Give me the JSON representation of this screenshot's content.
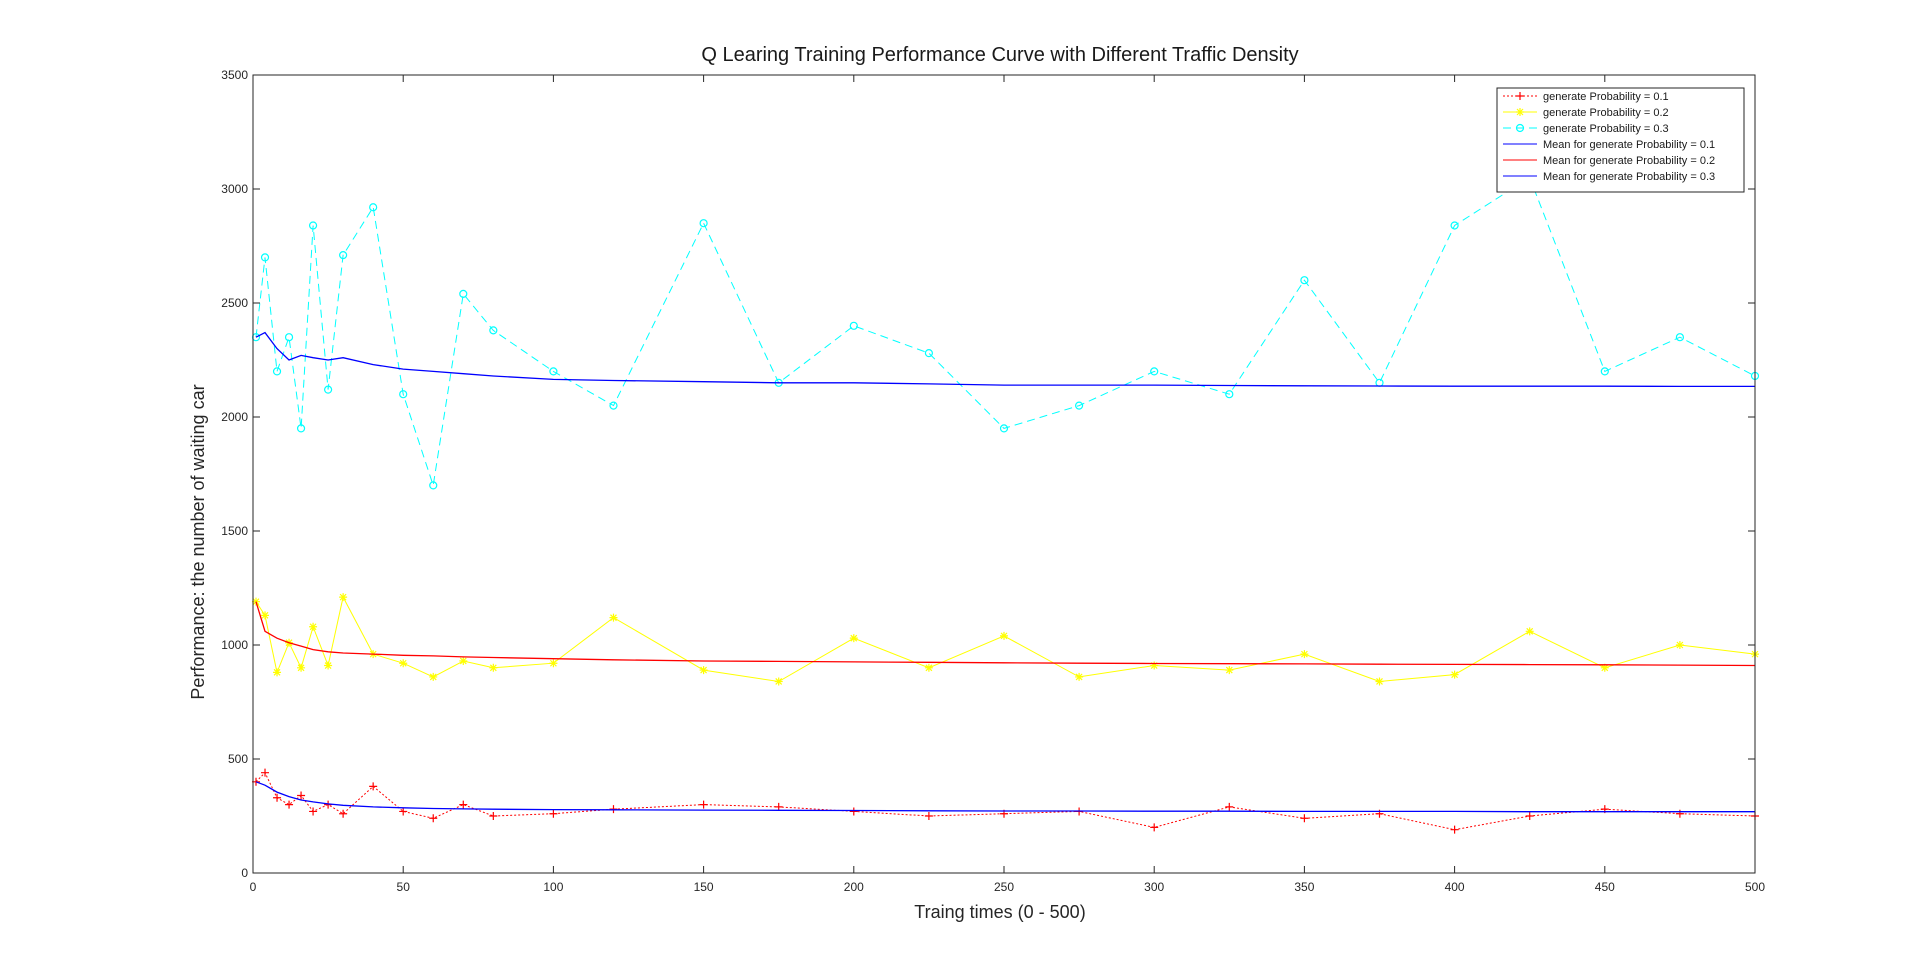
{
  "chart_data": {
    "type": "line",
    "title": "Q Learing Training Performance Curve with Different Traffic Density",
    "xlabel": "Traing times (0 - 500)",
    "ylabel": "Performance: the number of waiting car",
    "xlim": [
      0,
      500
    ],
    "ylim": [
      0,
      3500
    ],
    "xticks": [
      0,
      50,
      100,
      150,
      200,
      250,
      300,
      350,
      400,
      450,
      500
    ],
    "yticks": [
      0,
      500,
      1000,
      1500,
      2000,
      2500,
      3000,
      3500
    ],
    "legend_position": "top-right",
    "grid": false,
    "x": [
      1,
      4,
      8,
      12,
      16,
      20,
      25,
      30,
      40,
      50,
      60,
      70,
      80,
      100,
      120,
      150,
      175,
      200,
      225,
      250,
      275,
      300,
      325,
      350,
      375,
      400,
      425,
      450,
      475,
      500
    ],
    "series": [
      {
        "name": "generate Probability = 0.1",
        "color": "#ff0000",
        "style": "dotted",
        "marker": "+",
        "values": [
          400,
          440,
          330,
          300,
          340,
          270,
          300,
          260,
          380,
          270,
          240,
          300,
          250,
          260,
          280,
          300,
          290,
          270,
          250,
          260,
          270,
          200,
          290,
          240,
          260,
          190,
          250,
          280,
          260,
          250
        ]
      },
      {
        "name": "generate Probability = 0.2",
        "color": "#ffff00",
        "style": "solid",
        "marker": "*",
        "values": [
          1190,
          1130,
          880,
          1010,
          900,
          1080,
          910,
          1210,
          960,
          920,
          860,
          930,
          900,
          920,
          1120,
          890,
          840,
          1030,
          900,
          1040,
          860,
          910,
          890,
          960,
          840,
          870,
          1060,
          900,
          1000,
          960
        ]
      },
      {
        "name": "generate Probability = 0.3",
        "color": "#00ffff",
        "style": "dashed",
        "marker": "o",
        "values": [
          2350,
          2700,
          2200,
          2350,
          1950,
          2840,
          2120,
          2710,
          2920,
          2100,
          1700,
          2540,
          2380,
          2200,
          2050,
          2850,
          2150,
          2400,
          2280,
          1950,
          2050,
          2200,
          2100,
          2600,
          2150,
          2840,
          3050,
          2200,
          2350,
          2180
        ]
      },
      {
        "name": "Mean for generate Probability = 0.1",
        "color": "#0000ff",
        "style": "solid",
        "marker": "none",
        "values": [
          400,
          385,
          355,
          335,
          320,
          312,
          303,
          297,
          290,
          286,
          283,
          281,
          280,
          278,
          277,
          276,
          275,
          274,
          273,
          272,
          272,
          271,
          271,
          270,
          270,
          270,
          269,
          269,
          269,
          269
        ]
      },
      {
        "name": "Mean for generate Probability = 0.2",
        "color": "#ff0000",
        "style": "solid",
        "marker": "none",
        "values": [
          1190,
          1060,
          1030,
          1010,
          995,
          980,
          970,
          965,
          960,
          955,
          952,
          948,
          945,
          940,
          935,
          930,
          928,
          926,
          924,
          922,
          920,
          919,
          918,
          917,
          916,
          915,
          914,
          913,
          912,
          910
        ]
      },
      {
        "name": "Mean for generate Probability = 0.3",
        "color": "#0000ff",
        "style": "solid",
        "marker": "none",
        "values": [
          2350,
          2370,
          2300,
          2250,
          2270,
          2260,
          2250,
          2260,
          2230,
          2210,
          2200,
          2190,
          2180,
          2165,
          2160,
          2155,
          2150,
          2150,
          2145,
          2140,
          2140,
          2140,
          2138,
          2137,
          2136,
          2135,
          2135,
          2135,
          2134,
          2134
        ]
      }
    ]
  }
}
